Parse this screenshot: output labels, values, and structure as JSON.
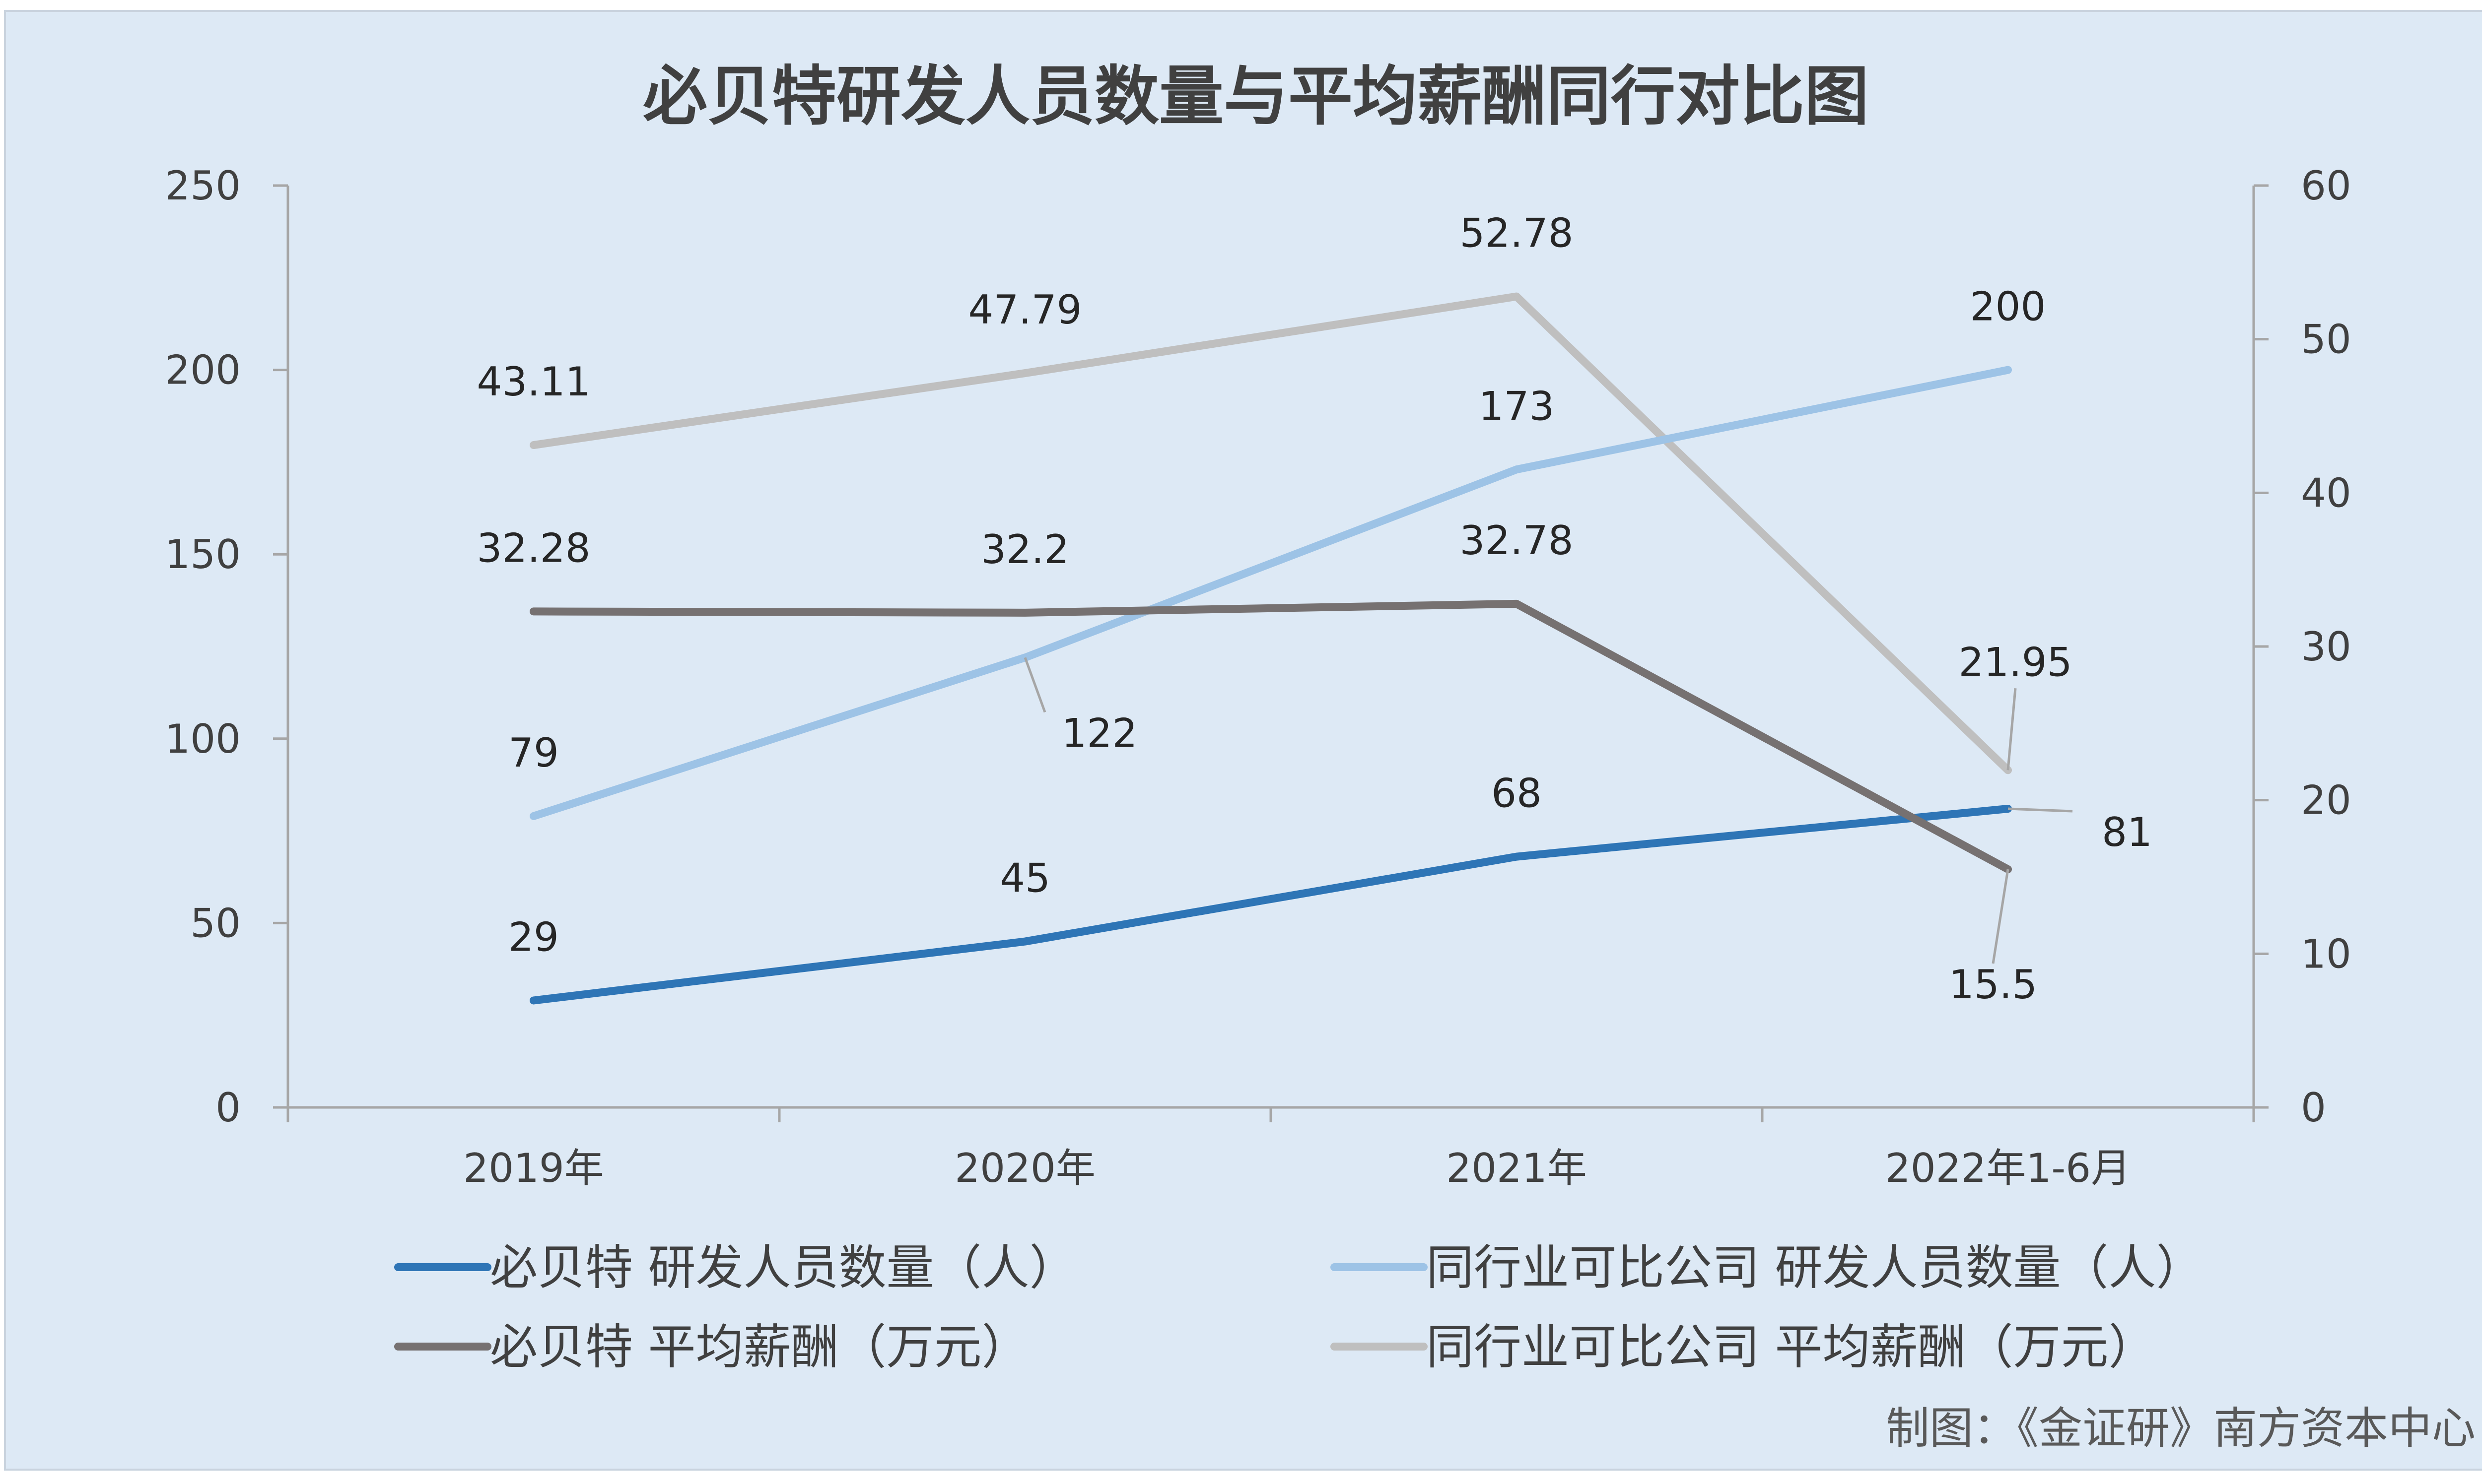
{
  "chart_data": {
    "type": "line",
    "title": "必贝特研发人员数量与平均薪酬同行对比图",
    "categories": [
      "2019年",
      "2020年",
      "2021年",
      "2022年1-6月"
    ],
    "y_left": {
      "range": [
        0,
        250
      ],
      "ticks": [
        "0",
        "50",
        "100",
        "150",
        "200",
        "250"
      ]
    },
    "y_right": {
      "range": [
        0,
        60
      ],
      "ticks": [
        "0",
        "10",
        "20",
        "30",
        "40",
        "50",
        "60"
      ]
    },
    "grid": false,
    "legend_position": "bottom",
    "series": [
      {
        "name": "必贝特 研发人员数量（人）",
        "axis": "left",
        "color": "#2e75b6",
        "values": [
          29,
          45,
          68,
          81
        ],
        "labels": [
          "29",
          "45",
          "68",
          "81"
        ]
      },
      {
        "name": "同行业可比公司 研发人员数量（人）",
        "axis": "left",
        "color": "#9dc3e6",
        "values": [
          79,
          122,
          173,
          200
        ],
        "labels": [
          "79",
          "122",
          "173",
          "200"
        ]
      },
      {
        "name": "必贝特 平均薪酬（万元）",
        "axis": "right",
        "color": "#767171",
        "values": [
          32.28,
          32.2,
          32.78,
          15.5
        ],
        "labels": [
          "32.28",
          "32.2",
          "32.78",
          "15.5"
        ]
      },
      {
        "name": "同行业可比公司 平均薪酬（万元）",
        "axis": "right",
        "color": "#bfbfbf",
        "values": [
          43.11,
          47.79,
          52.78,
          21.95
        ],
        "labels": [
          "43.11",
          "47.79",
          "52.78",
          "21.95"
        ]
      }
    ]
  },
  "credit": "制图：《金证研》南方资本中心"
}
